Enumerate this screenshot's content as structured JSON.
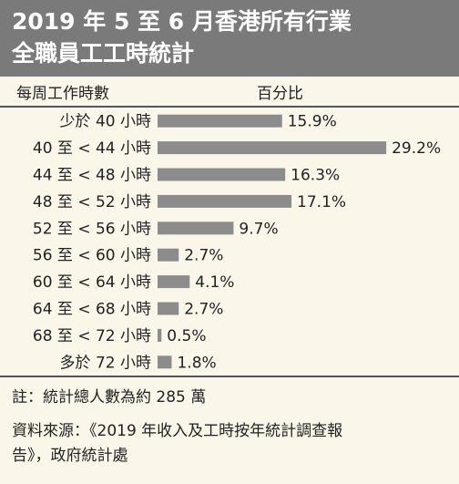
{
  "header": {
    "title_line1": "2019 年 5 至 6 月香港所有行業",
    "title_line2": "全職員工工時統計"
  },
  "columns": {
    "hours": "每周工作時數",
    "percent": "百分比"
  },
  "colors": {
    "header_bg": "#7a7a7a",
    "bar": "#8c8c8c",
    "background": "#fbf6ea"
  },
  "chart_data": {
    "type": "bar",
    "orientation": "horizontal",
    "title": "2019 年 5 至 6 月香港所有行業全職員工工時統計",
    "categories": [
      "少於 40 小時",
      "40 至 < 44 小時",
      "44 至 < 48 小時",
      "48 至 < 52 小時",
      "52 至 < 56 小時",
      "56 至 < 60 小時",
      "60 至 < 64 小時",
      "64 至 < 68 小時",
      "68 至 < 72 小時",
      "多於 72 小時"
    ],
    "values": [
      15.9,
      29.2,
      16.3,
      17.1,
      9.7,
      2.7,
      4.1,
      2.7,
      0.5,
      1.8
    ],
    "value_labels": [
      "15.9%",
      "29.2%",
      "16.3%",
      "17.1%",
      "9.7%",
      "2.7%",
      "4.1%",
      "2.7%",
      "0.5%",
      "1.8%"
    ],
    "xlabel": "百分比",
    "ylabel": "每周工作時數",
    "grid": false,
    "legend": "none"
  },
  "notes": {
    "note": "註：統計總人數為約 285 萬",
    "source_line1": "資料來源：《2019 年收入及工時按年統計調查報",
    "source_line2": "告》，政府統計處"
  }
}
